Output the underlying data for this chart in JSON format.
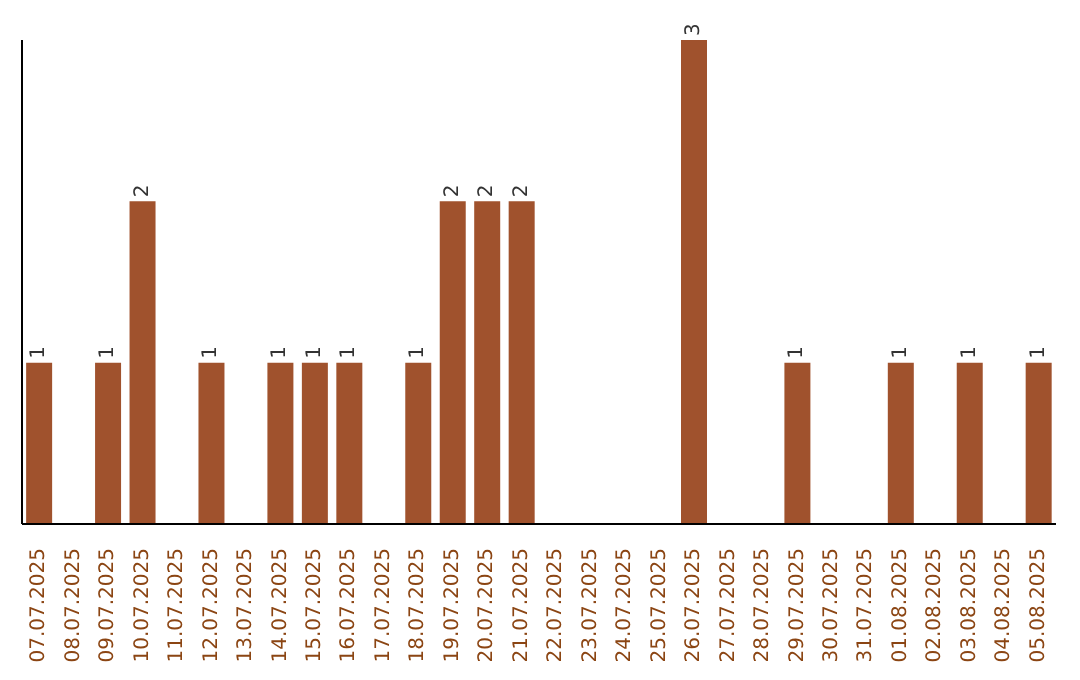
{
  "chart_data": {
    "type": "bar",
    "categories": [
      "07.07.2025",
      "08.07.2025",
      "09.07.2025",
      "10.07.2025",
      "11.07.2025",
      "12.07.2025",
      "13.07.2025",
      "14.07.2025",
      "15.07.2025",
      "16.07.2025",
      "17.07.2025",
      "18.07.2025",
      "19.07.2025",
      "20.07.2025",
      "21.07.2025",
      "22.07.2025",
      "23.07.2025",
      "24.07.2025",
      "25.07.2025",
      "26.07.2025",
      "27.07.2025",
      "28.07.2025",
      "29.07.2025",
      "30.07.2025",
      "31.07.2025",
      "01.08.2025",
      "02.08.2025",
      "03.08.2025",
      "04.08.2025",
      "05.08.2025"
    ],
    "values": [
      1,
      0,
      1,
      2,
      0,
      1,
      0,
      1,
      1,
      1,
      0,
      1,
      2,
      2,
      2,
      0,
      0,
      0,
      0,
      3,
      0,
      0,
      1,
      0,
      0,
      1,
      0,
      1,
      0,
      1
    ],
    "value_labels": [
      "1",
      null,
      "1",
      "2",
      null,
      "1",
      null,
      "1",
      "1",
      "1",
      null,
      "1",
      "2",
      "2",
      "2",
      null,
      null,
      null,
      null,
      "3",
      null,
      null,
      "1",
      null,
      null,
      "1",
      null,
      "1",
      null,
      "1"
    ],
    "color": "#a0522d",
    "ylim": [
      0,
      3
    ],
    "tick_labels": "x",
    "grid": false
  }
}
